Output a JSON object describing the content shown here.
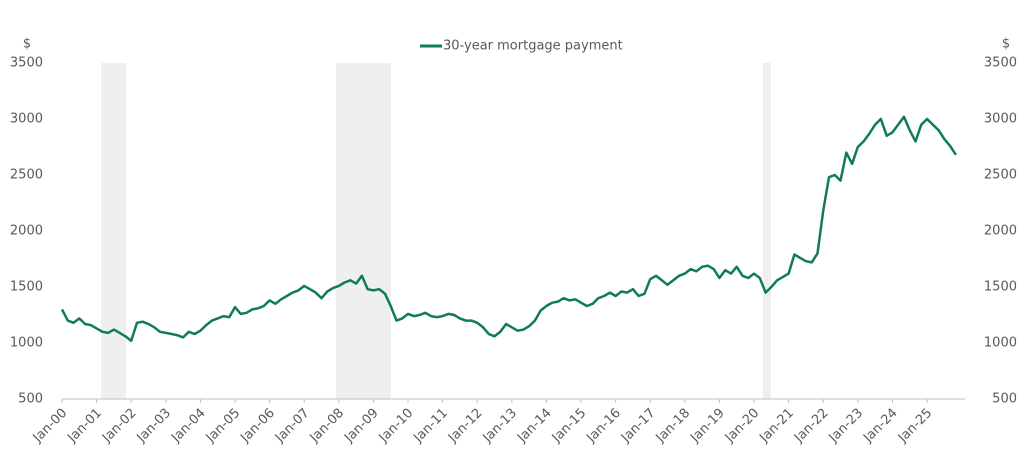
{
  "chart_data": {
    "type": "line",
    "y_label": "$",
    "y2_label": "$",
    "ylim": [
      500,
      3500
    ],
    "yticks": [
      500,
      1000,
      1500,
      2000,
      2500,
      3000,
      3500
    ],
    "y2lim": [
      500,
      3500
    ],
    "y2ticks": [
      500,
      1000,
      1500,
      2000,
      2500,
      3000,
      3500
    ],
    "grid": false,
    "legend": "top",
    "categories": [
      "Jan-00",
      null,
      null,
      null,
      null,
      null,
      "Jan-01",
      null,
      null,
      null,
      null,
      null,
      "Jan-02",
      null,
      null,
      null,
      null,
      null,
      "Jan-03",
      null,
      null,
      null,
      null,
      null,
      "Jan-04",
      null,
      null,
      null,
      null,
      null,
      "Jan-05",
      null,
      null,
      null,
      null,
      null,
      "Jan-06",
      null,
      null,
      null,
      null,
      null,
      "Jan-07",
      null,
      null,
      null,
      null,
      null,
      "Jan-08",
      null,
      null,
      null,
      null,
      null,
      "Jan-09",
      null,
      null,
      null,
      null,
      null,
      "Jan-10",
      null,
      null,
      null,
      null,
      null,
      "Jan-11",
      null,
      null,
      null,
      null,
      null,
      "Jan-12",
      null,
      null,
      null,
      null,
      null,
      "Jan-13",
      null,
      null,
      null,
      null,
      null,
      "Jan-14",
      null,
      null,
      null,
      null,
      null,
      "Jan-15",
      null,
      null,
      null,
      null,
      null,
      "Jan-16",
      null,
      null,
      null,
      null,
      null,
      "Jan-17",
      null,
      null,
      null,
      null,
      null,
      "Jan-18",
      null,
      null,
      null,
      null,
      null,
      "Jan-19",
      null,
      null,
      null,
      null,
      null,
      "Jan-20",
      null,
      null,
      null,
      null,
      null,
      "Jan-21",
      null,
      null,
      null,
      null,
      null,
      "Jan-22",
      null,
      null,
      null,
      null,
      null,
      "Jan-23",
      null,
      null,
      null,
      null,
      null,
      "Jan-24",
      null,
      null,
      null,
      null,
      null,
      "Jan-25",
      null,
      null,
      null,
      null,
      null
    ],
    "series": [
      {
        "name": "30-year mortgage payment",
        "color": "#107a5e",
        "axis": "y",
        "values": [
          1300,
          1200,
          1180,
          1220,
          1170,
          1160,
          1130,
          1100,
          1090,
          1120,
          1090,
          1060,
          1020,
          1180,
          1190,
          1170,
          1140,
          1100,
          1090,
          1080,
          1070,
          1050,
          1100,
          1080,
          1110,
          1160,
          1200,
          1220,
          1240,
          1230,
          1320,
          1260,
          1270,
          1300,
          1310,
          1330,
          1380,
          1350,
          1390,
          1420,
          1450,
          1470,
          1510,
          1480,
          1450,
          1400,
          1460,
          1490,
          1510,
          1540,
          1560,
          1530,
          1600,
          1480,
          1470,
          1480,
          1440,
          1330,
          1200,
          1220,
          1260,
          1240,
          1250,
          1270,
          1240,
          1230,
          1240,
          1260,
          1250,
          1220,
          1200,
          1200,
          1180,
          1140,
          1080,
          1060,
          1100,
          1170,
          1140,
          1110,
          1120,
          1150,
          1200,
          1290,
          1330,
          1360,
          1370,
          1400,
          1380,
          1390,
          1360,
          1330,
          1350,
          1400,
          1420,
          1450,
          1420,
          1460,
          1450,
          1480,
          1420,
          1440,
          1570,
          1600,
          1560,
          1520,
          1560,
          1600,
          1620,
          1660,
          1640,
          1680,
          1690,
          1660,
          1580,
          1650,
          1620,
          1680,
          1600,
          1580,
          1620,
          1580,
          1450,
          1500,
          1560,
          1590,
          1620,
          1790,
          1760,
          1730,
          1720,
          1800,
          2180,
          2480,
          2500,
          2450,
          2700,
          2600,
          2750,
          2800,
          2870,
          2950,
          3000,
          2850,
          2880,
          2950,
          3020,
          2900,
          2800,
          2950,
          3000,
          2950,
          2900,
          2820,
          2760,
          2680
        ]
      }
    ]
  }
}
